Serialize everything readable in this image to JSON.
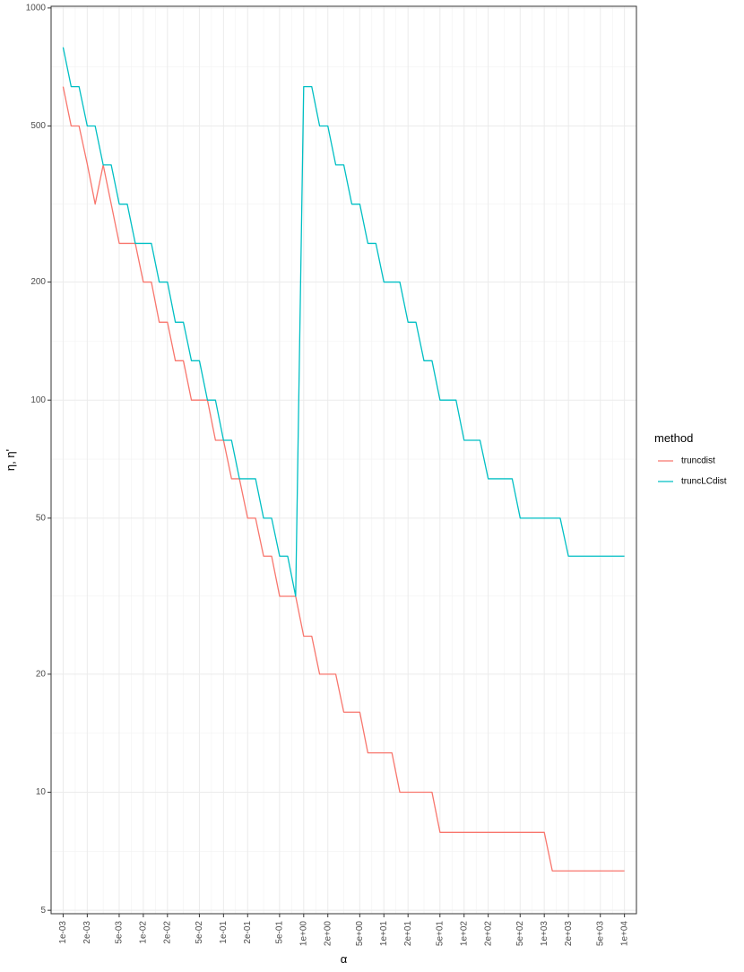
{
  "chart_data": {
    "type": "line",
    "xlabel": "α",
    "ylabel": "η, η'",
    "x_scale": "log10",
    "y_scale": "log10",
    "xlim": [
      0.000708,
      14100
    ],
    "ylim": [
      4.9,
      1010
    ],
    "x_ticks": [
      0.001,
      0.002,
      0.005,
      0.01,
      0.02,
      0.05,
      0.1,
      0.2,
      0.5,
      1,
      2,
      5,
      10,
      20,
      50,
      100,
      200,
      500,
      1000,
      2000,
      5000,
      10000
    ],
    "x_tick_labels": [
      "1e-03",
      "2e-03",
      "5e-03",
      "1e-02",
      "2e-02",
      "5e-02",
      "1e-01",
      "2e-01",
      "5e-01",
      "1e+00",
      "2e+00",
      "5e+00",
      "1e+01",
      "2e+01",
      "5e+01",
      "1e+02",
      "2e+02",
      "5e+02",
      "1e+03",
      "2e+03",
      "5e+03",
      "1e+04"
    ],
    "y_ticks": [
      5,
      10,
      20,
      50,
      100,
      200,
      500,
      1000
    ],
    "y_tick_labels": [
      "5",
      "10",
      "20",
      "50",
      "100",
      "200",
      "500",
      "1000"
    ],
    "grid": true,
    "legend": {
      "title": "method",
      "position": "right"
    },
    "series": [
      {
        "name": "truncdist",
        "color": "#F8766D",
        "points": [
          [
            0.001,
            630
          ],
          [
            0.00126,
            500
          ],
          [
            0.00158,
            500
          ],
          [
            0.002,
            400
          ],
          [
            0.00251,
            316
          ],
          [
            0.00316,
            398
          ],
          [
            0.00398,
            316
          ],
          [
            0.00501,
            251
          ],
          [
            0.00631,
            251
          ],
          [
            0.00794,
            251
          ],
          [
            0.01,
            200
          ],
          [
            0.0126,
            200
          ],
          [
            0.0158,
            158
          ],
          [
            0.02,
            158
          ],
          [
            0.0251,
            126
          ],
          [
            0.0316,
            126
          ],
          [
            0.0398,
            100
          ],
          [
            0.0501,
            100
          ],
          [
            0.0631,
            100
          ],
          [
            0.0794,
            79
          ],
          [
            0.1,
            79
          ],
          [
            0.126,
            63
          ],
          [
            0.158,
            63
          ],
          [
            0.2,
            50
          ],
          [
            0.251,
            50
          ],
          [
            0.316,
            40
          ],
          [
            0.398,
            40
          ],
          [
            0.501,
            31.6
          ],
          [
            0.631,
            31.6
          ],
          [
            0.794,
            31.6
          ],
          [
            1,
            25
          ],
          [
            1.26,
            25
          ],
          [
            1.58,
            20
          ],
          [
            2,
            20
          ],
          [
            2.51,
            20
          ],
          [
            3.16,
            16
          ],
          [
            3.98,
            16
          ],
          [
            5.01,
            16
          ],
          [
            6.31,
            12.6
          ],
          [
            7.94,
            12.6
          ],
          [
            10,
            12.6
          ],
          [
            12.6,
            12.6
          ],
          [
            15.8,
            10
          ],
          [
            20,
            10
          ],
          [
            25.1,
            10
          ],
          [
            31.6,
            10
          ],
          [
            39.8,
            10
          ],
          [
            50.1,
            7.9
          ],
          [
            63.1,
            7.9
          ],
          [
            79.4,
            7.9
          ],
          [
            100,
            7.9
          ],
          [
            126,
            7.9
          ],
          [
            158,
            7.9
          ],
          [
            200,
            7.9
          ],
          [
            251,
            7.9
          ],
          [
            316,
            7.9
          ],
          [
            398,
            7.9
          ],
          [
            501,
            7.9
          ],
          [
            631,
            7.9
          ],
          [
            794,
            7.9
          ],
          [
            1000,
            7.9
          ],
          [
            1260,
            6.3
          ],
          [
            1580,
            6.3
          ],
          [
            2000,
            6.3
          ],
          [
            2510,
            6.3
          ],
          [
            3160,
            6.3
          ],
          [
            3980,
            6.3
          ],
          [
            5010,
            6.3
          ],
          [
            6310,
            6.3
          ],
          [
            7940,
            6.3
          ],
          [
            10000,
            6.3
          ]
        ]
      },
      {
        "name": "truncLCdist",
        "color": "#00BFC4",
        "points": [
          [
            0.001,
            794
          ],
          [
            0.00126,
            630
          ],
          [
            0.00158,
            630
          ],
          [
            0.002,
            500
          ],
          [
            0.00251,
            500
          ],
          [
            0.00316,
            398
          ],
          [
            0.00398,
            398
          ],
          [
            0.00501,
            316
          ],
          [
            0.00631,
            316
          ],
          [
            0.00794,
            251
          ],
          [
            0.01,
            251
          ],
          [
            0.0126,
            251
          ],
          [
            0.0158,
            200
          ],
          [
            0.02,
            200
          ],
          [
            0.0251,
            158
          ],
          [
            0.0316,
            158
          ],
          [
            0.0398,
            126
          ],
          [
            0.0501,
            126
          ],
          [
            0.0631,
            100
          ],
          [
            0.0794,
            100
          ],
          [
            0.1,
            79
          ],
          [
            0.126,
            79
          ],
          [
            0.158,
            63
          ],
          [
            0.2,
            63
          ],
          [
            0.251,
            63
          ],
          [
            0.316,
            50
          ],
          [
            0.398,
            50
          ],
          [
            0.501,
            40
          ],
          [
            0.631,
            40
          ],
          [
            0.794,
            31.6
          ],
          [
            1,
            630
          ],
          [
            1.26,
            630
          ],
          [
            1.58,
            500
          ],
          [
            2,
            500
          ],
          [
            2.51,
            398
          ],
          [
            3.16,
            398
          ],
          [
            3.98,
            316
          ],
          [
            5.01,
            316
          ],
          [
            6.31,
            251
          ],
          [
            7.94,
            251
          ],
          [
            10,
            200
          ],
          [
            12.6,
            200
          ],
          [
            15.8,
            200
          ],
          [
            20,
            158
          ],
          [
            25.1,
            158
          ],
          [
            31.6,
            126
          ],
          [
            39.8,
            126
          ],
          [
            50.1,
            100
          ],
          [
            63.1,
            100
          ],
          [
            79.4,
            100
          ],
          [
            100,
            79
          ],
          [
            126,
            79
          ],
          [
            158,
            79
          ],
          [
            200,
            63
          ],
          [
            251,
            63
          ],
          [
            316,
            63
          ],
          [
            398,
            63
          ],
          [
            501,
            50
          ],
          [
            631,
            50
          ],
          [
            794,
            50
          ],
          [
            1000,
            50
          ],
          [
            1260,
            50
          ],
          [
            1580,
            50
          ],
          [
            2000,
            40
          ],
          [
            2510,
            40
          ],
          [
            3160,
            40
          ],
          [
            3980,
            40
          ],
          [
            5010,
            40
          ],
          [
            6310,
            40
          ],
          [
            7940,
            40
          ],
          [
            10000,
            40
          ]
        ]
      }
    ]
  }
}
